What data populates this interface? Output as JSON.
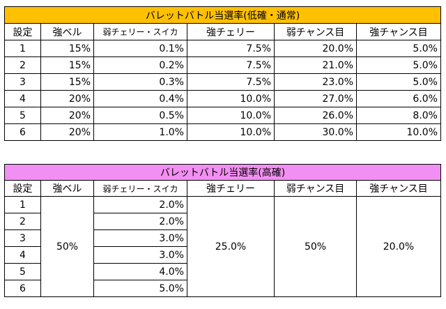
{
  "table1": {
    "title": "バレットバトル当選率(低確・通常)",
    "headers": [
      "設定",
      "強ベル",
      "弱チェリー・スイカ",
      "強チェリー",
      "弱チャンス目",
      "強チャンス目"
    ],
    "rows": [
      [
        "1",
        "15%",
        "0.1%",
        "7.5%",
        "20.0%",
        "5.0%"
      ],
      [
        "2",
        "15%",
        "0.2%",
        "7.5%",
        "21.0%",
        "5.0%"
      ],
      [
        "3",
        "15%",
        "0.3%",
        "7.5%",
        "23.0%",
        "5.0%"
      ],
      [
        "4",
        "20%",
        "0.4%",
        "10.0%",
        "27.0%",
        "6.0%"
      ],
      [
        "5",
        "20%",
        "0.5%",
        "10.0%",
        "26.0%",
        "8.0%"
      ],
      [
        "6",
        "20%",
        "1.0%",
        "10.0%",
        "30.0%",
        "10.0%"
      ]
    ]
  },
  "table2": {
    "title": "バレットバトル当選率(高確)",
    "headers": [
      "設定",
      "強ベル",
      "弱チェリー・スイカ",
      "強チェリー",
      "弱チャンス目",
      "強チャンス目"
    ],
    "settings": [
      "1",
      "2",
      "3",
      "4",
      "5",
      "6"
    ],
    "strong_bell": "50%",
    "weak_cherry_suika": [
      "2.0%",
      "2.0%",
      "3.0%",
      "3.0%",
      "4.0%",
      "5.0%"
    ],
    "strong_cherry": "25.0%",
    "weak_chance": "50%",
    "strong_chance": "20.0%"
  }
}
